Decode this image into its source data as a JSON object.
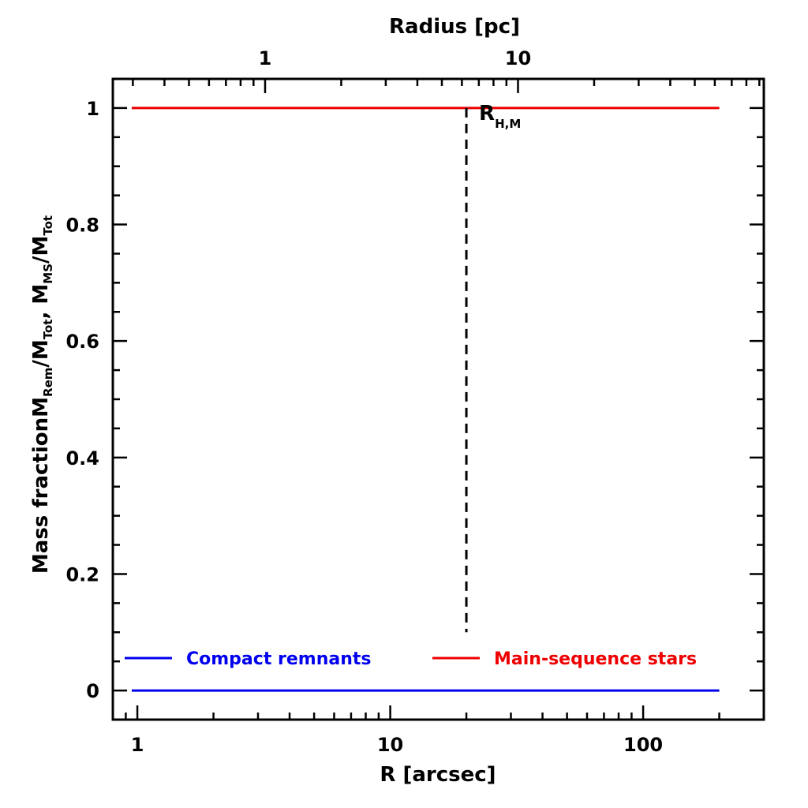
{
  "chart_data": {
    "type": "line",
    "xlabel": "R [arcsec]",
    "ylabel_main": "Mass fraction",
    "ylabel_ratio1": {
      "base": "M",
      "sub": "Rem",
      "rest": "/M",
      "sub2": "Tot"
    },
    "ylabel_ratio2": {
      "base": "M",
      "sub": "MS",
      "rest": "/M",
      "sub2": "Tot"
    },
    "top_xlabel": "Radius [pc]",
    "x_scale": "log",
    "xlim": [
      0.8,
      300
    ],
    "ylim": [
      -0.05,
      1.05
    ],
    "x_ticks": [
      1,
      10,
      100
    ],
    "x_tick_labels": [
      "1",
      "10",
      "100"
    ],
    "y_ticks": [
      0,
      0.2,
      0.4,
      0.6,
      0.8,
      1
    ],
    "y_tick_labels": [
      "0",
      "0.2",
      "0.4",
      "0.6",
      "0.8",
      "1"
    ],
    "top_ticks_arcsec": [
      3.2,
      32
    ],
    "top_tick_labels": [
      "1",
      "10"
    ],
    "series": [
      {
        "name": "Compact remnants",
        "color": "#0000ee",
        "x": [
          0.95,
          200
        ],
        "y": [
          0,
          0
        ]
      },
      {
        "name": "Main-sequence stars",
        "color": "#ee0000",
        "x": [
          0.95,
          200
        ],
        "y": [
          1,
          1
        ]
      }
    ],
    "half_mass_radius": {
      "x": 20,
      "y_range": [
        0.1,
        1.0
      ],
      "label": "R",
      "label_sub": "H,M"
    },
    "legend": {
      "placement": "bottom",
      "entries": [
        {
          "label": "Compact remnants",
          "color": "#0000ee"
        },
        {
          "label": "Main-sequence stars",
          "color": "#ee0000"
        }
      ]
    }
  }
}
